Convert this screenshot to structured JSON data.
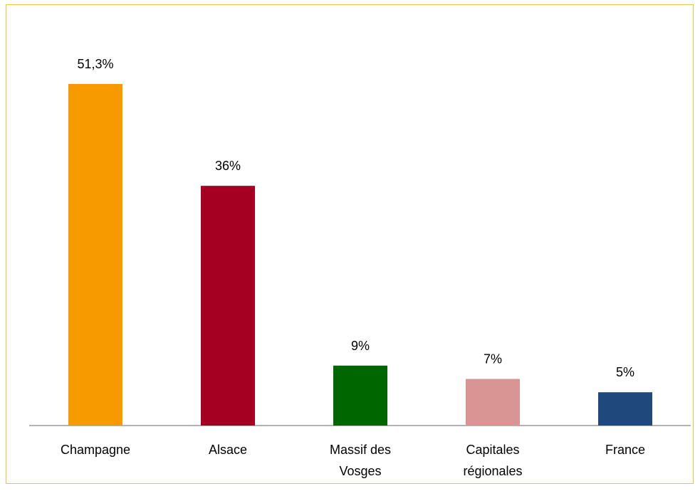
{
  "chart_data": {
    "type": "bar",
    "categories": [
      "Champagne",
      "Alsace",
      "Massif des Vosges",
      "Capitales régionales",
      "France"
    ],
    "values": [
      51.3,
      36,
      9,
      7,
      5
    ],
    "value_labels": [
      "51,3%",
      "36%",
      "9%",
      "7%",
      "5%"
    ],
    "colors": [
      "#f79a00",
      "#a50021",
      "#006600",
      "#d99594",
      "#1f497d"
    ]
  }
}
